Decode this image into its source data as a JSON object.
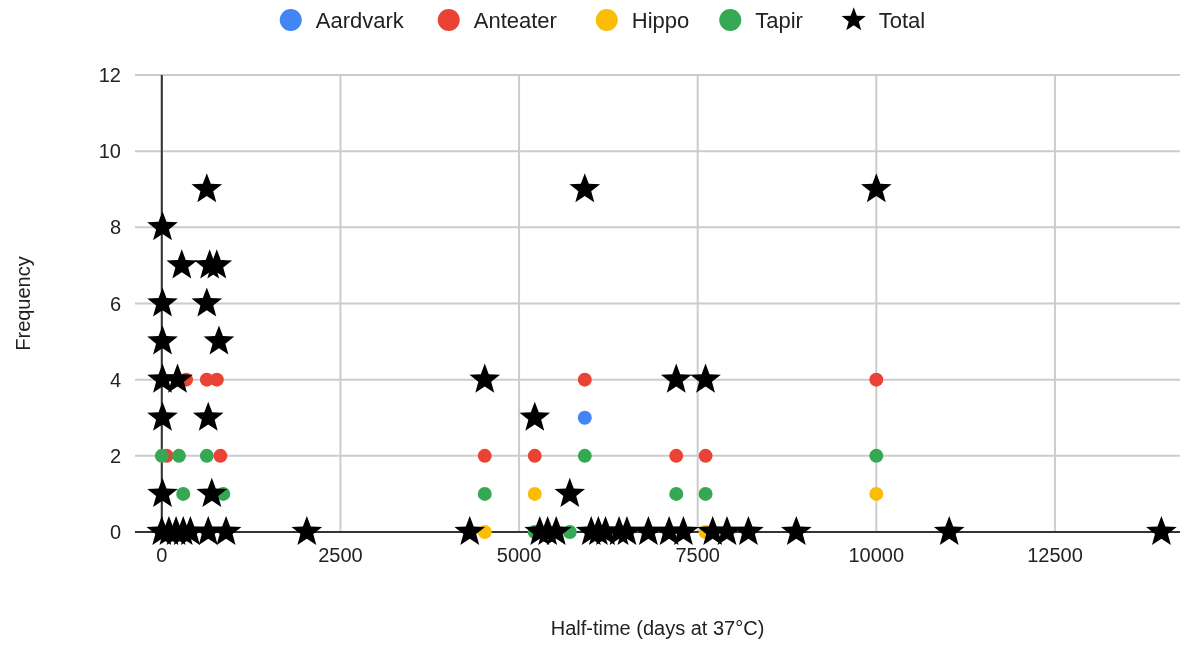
{
  "chart_data": {
    "type": "scatter",
    "xlabel": "Half-time (days at 37°C)",
    "ylabel": "Frequency",
    "xlim": [
      -375,
      14250
    ],
    "ylim": [
      0,
      12
    ],
    "xticks": [
      0,
      2500,
      5000,
      7500,
      10000,
      12500
    ],
    "yticks": [
      0,
      2,
      4,
      6,
      8,
      10,
      12
    ],
    "grid": true,
    "legend": "top",
    "series": [
      {
        "name": "Aardvark",
        "color": "#4285f4",
        "marker": "circle",
        "x": [
          5920
        ],
        "values": [
          3
        ]
      },
      {
        "name": "Anteater",
        "color": "#ea4335",
        "marker": "circle",
        "x": [
          70,
          340,
          630,
          770,
          820,
          4520,
          5220,
          5920,
          7200,
          7610,
          10000
        ],
        "values": [
          2,
          4,
          4,
          4,
          2,
          2,
          2,
          4,
          2,
          2,
          4
        ]
      },
      {
        "name": "Hippo",
        "color": "#fbbc04",
        "marker": "circle",
        "x": [
          4520,
          5220,
          7610,
          10000
        ],
        "values": [
          0,
          1,
          0,
          1
        ]
      },
      {
        "name": "Tapir",
        "color": "#34a853",
        "marker": "circle",
        "x": [
          0,
          240,
          300,
          630,
          860,
          4520,
          5220,
          5710,
          5920,
          7200,
          7610,
          10000
        ],
        "values": [
          2,
          2,
          1,
          2,
          1,
          1,
          0,
          0,
          2,
          1,
          1,
          2
        ]
      },
      {
        "name": "Total",
        "color": "#000000",
        "marker": "star",
        "x": [
          630,
          10,
          280,
          670,
          770,
          10,
          630,
          10,
          800,
          10,
          220,
          10,
          650,
          10,
          700,
          0,
          100,
          200,
          300,
          400,
          650,
          900,
          2030,
          4310,
          5290,
          5400,
          5520,
          6010,
          6110,
          6210,
          6400,
          6510,
          6810,
          7100,
          7300,
          7710,
          7910,
          8210,
          8880,
          11020,
          13990,
          4520,
          5220,
          5710,
          7200,
          7610,
          5920,
          10000
        ],
        "values": [
          9,
          8,
          7,
          7,
          7,
          6,
          6,
          5,
          5,
          4,
          4,
          3,
          3,
          1,
          1,
          0,
          0,
          0,
          0,
          0,
          0,
          0,
          0,
          0,
          0,
          0,
          0,
          0,
          0,
          0,
          0,
          0,
          0,
          0,
          0,
          0,
          0,
          0,
          0,
          0,
          0,
          4,
          3,
          1,
          4,
          4,
          9,
          9
        ]
      }
    ]
  }
}
